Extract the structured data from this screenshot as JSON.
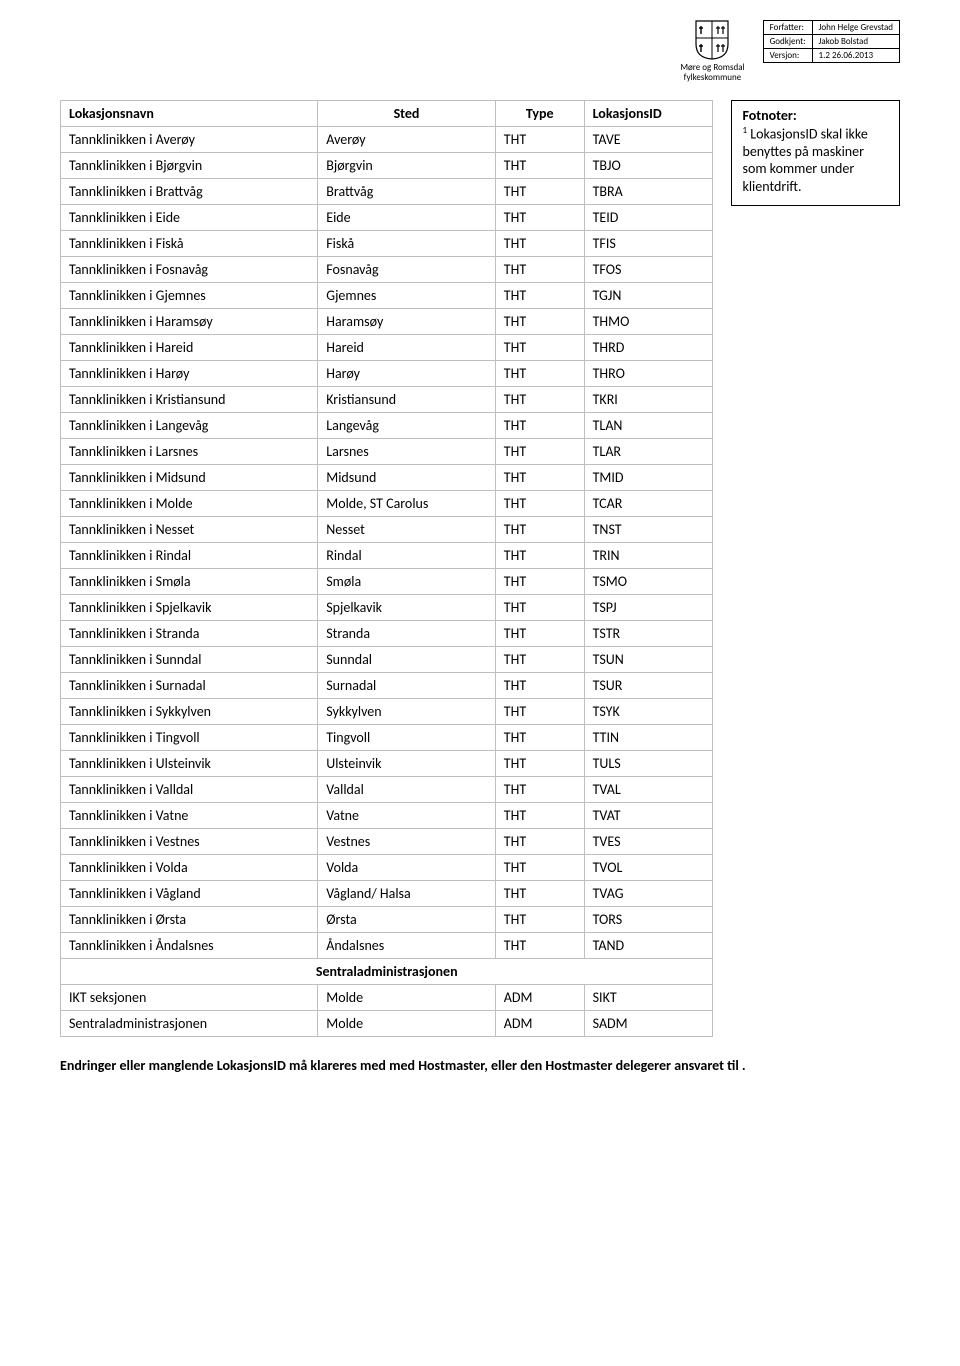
{
  "meta": {
    "rows": [
      {
        "label": "Forfatter:",
        "value": "John Helge Grevstad"
      },
      {
        "label": "Godkjent:",
        "value": "Jakob Bolstad"
      },
      {
        "label": "Versjon:",
        "value": "1.2  26.06.2013"
      }
    ]
  },
  "logo_caption_line1": "Møre og Romsdal",
  "logo_caption_line2": "fylkeskommune",
  "table": {
    "headers": [
      "Lokasjonsnavn",
      "Sted",
      "Type",
      "LokasjonsID"
    ],
    "rows": [
      [
        "Tannklinikken i Averøy",
        "Averøy",
        "THT",
        "TAVE"
      ],
      [
        "Tannklinikken i Bjørgvin",
        "Bjørgvin",
        "THT",
        "TBJO"
      ],
      [
        "Tannklinikken i Brattvåg",
        "Brattvåg",
        "THT",
        "TBRA"
      ],
      [
        "Tannklinikken i Eide",
        "Eide",
        "THT",
        "TEID"
      ],
      [
        "Tannklinikken i Fiskå",
        "Fiskå",
        "THT",
        "TFIS"
      ],
      [
        "Tannklinikken i Fosnavåg",
        "Fosnavåg",
        "THT",
        "TFOS"
      ],
      [
        "Tannklinikken i Gjemnes",
        "Gjemnes",
        "THT",
        "TGJN"
      ],
      [
        "Tannklinikken i Haramsøy",
        "Haramsøy",
        "THT",
        "THMO"
      ],
      [
        "Tannklinikken i Hareid",
        "Hareid",
        "THT",
        "THRD"
      ],
      [
        "Tannklinikken i Harøy",
        "Harøy",
        "THT",
        "THRO"
      ],
      [
        "Tannklinikken i Kristiansund",
        "Kristiansund",
        "THT",
        "TKRI"
      ],
      [
        "Tannklinikken i Langevåg",
        "Langevåg",
        "THT",
        "TLAN"
      ],
      [
        "Tannklinikken i Larsnes",
        "Larsnes",
        "THT",
        "TLAR"
      ],
      [
        "Tannklinikken i Midsund",
        "Midsund",
        "THT",
        "TMID"
      ],
      [
        "Tannklinikken i Molde",
        "Molde, ST Carolus",
        "THT",
        "TCAR"
      ],
      [
        "Tannklinikken i Nesset",
        "Nesset",
        "THT",
        "TNST"
      ],
      [
        "Tannklinikken i Rindal",
        "Rindal",
        "THT",
        "TRIN"
      ],
      [
        "Tannklinikken i Smøla",
        "Smøla",
        "THT",
        "TSMO"
      ],
      [
        "Tannklinikken i Spjelkavik",
        "Spjelkavik",
        "THT",
        "TSPJ"
      ],
      [
        "Tannklinikken i Stranda",
        "Stranda",
        "THT",
        "TSTR"
      ],
      [
        "Tannklinikken i Sunndal",
        "Sunndal",
        "THT",
        "TSUN"
      ],
      [
        "Tannklinikken i Surnadal",
        "Surnadal",
        "THT",
        "TSUR"
      ],
      [
        "Tannklinikken i Sykkylven",
        "Sykkylven",
        "THT",
        "TSYK"
      ],
      [
        "Tannklinikken i Tingvoll",
        "Tingvoll",
        "THT",
        "TTIN"
      ],
      [
        "Tannklinikken i Ulsteinvik",
        "Ulsteinvik",
        "THT",
        "TULS"
      ],
      [
        "Tannklinikken i Valldal",
        "Valldal",
        "THT",
        "TVAL"
      ],
      [
        "Tannklinikken i Vatne",
        "Vatne",
        "THT",
        "TVAT"
      ],
      [
        "Tannklinikken i Vestnes",
        "Vestnes",
        "THT",
        "TVES"
      ],
      [
        "Tannklinikken i Volda",
        "Volda",
        "THT",
        "TVOL"
      ],
      [
        "Tannklinikken i Vågland",
        "Vågland/ Halsa",
        "THT",
        "TVAG"
      ],
      [
        "Tannklinikken i Ørsta",
        "Ørsta",
        "THT",
        "TORS"
      ],
      [
        "Tannklinikken i Åndalsnes",
        "Åndalsnes",
        "THT",
        "TAND"
      ]
    ],
    "section_label": "Sentraladministrasjonen",
    "rows2": [
      [
        "IKT seksjonen",
        "Molde",
        "ADM",
        "SIKT"
      ],
      [
        "Sentraladministrasjonen",
        "Molde",
        "ADM",
        "SADM"
      ]
    ]
  },
  "footnote": {
    "title": "Fotnoter:",
    "marker": "1",
    "text": " LokasjonsID skal ikke benyttes på maskiner som kommer under klientdrift."
  },
  "bottom_note": "Endringer eller manglende LokasjonsID må klareres med med Hostmaster, eller den Hostmaster delegerer ansvaret til ."
}
